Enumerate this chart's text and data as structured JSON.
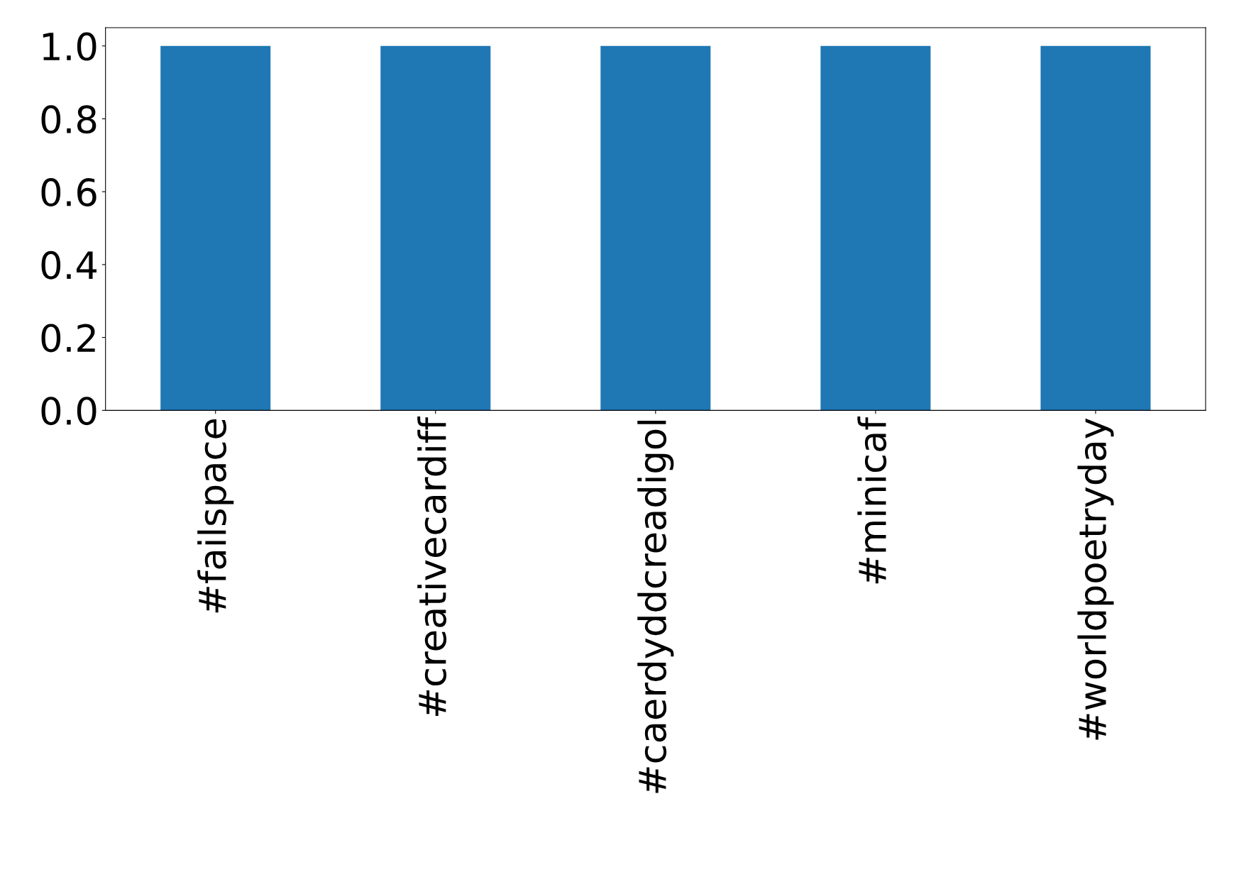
{
  "chart_data": {
    "type": "bar",
    "categories": [
      "#failspace",
      "#creativecardiff",
      "#caerdyddcreadigol",
      "#minicaf",
      "#worldpoetryday"
    ],
    "values": [
      1,
      1,
      1,
      1,
      1
    ],
    "color": "#1f77b4",
    "ylim": [
      0,
      1.05
    ],
    "yticks": [
      {
        "value": 0,
        "label": "0.0"
      },
      {
        "value": 0.2,
        "label": "0.2"
      },
      {
        "value": 0.4,
        "label": "0.4"
      },
      {
        "value": 0.6,
        "label": "0.6"
      },
      {
        "value": 0.8,
        "label": "0.8"
      },
      {
        "value": 1,
        "label": "1.0"
      }
    ],
    "grid": false,
    "legend": false
  }
}
